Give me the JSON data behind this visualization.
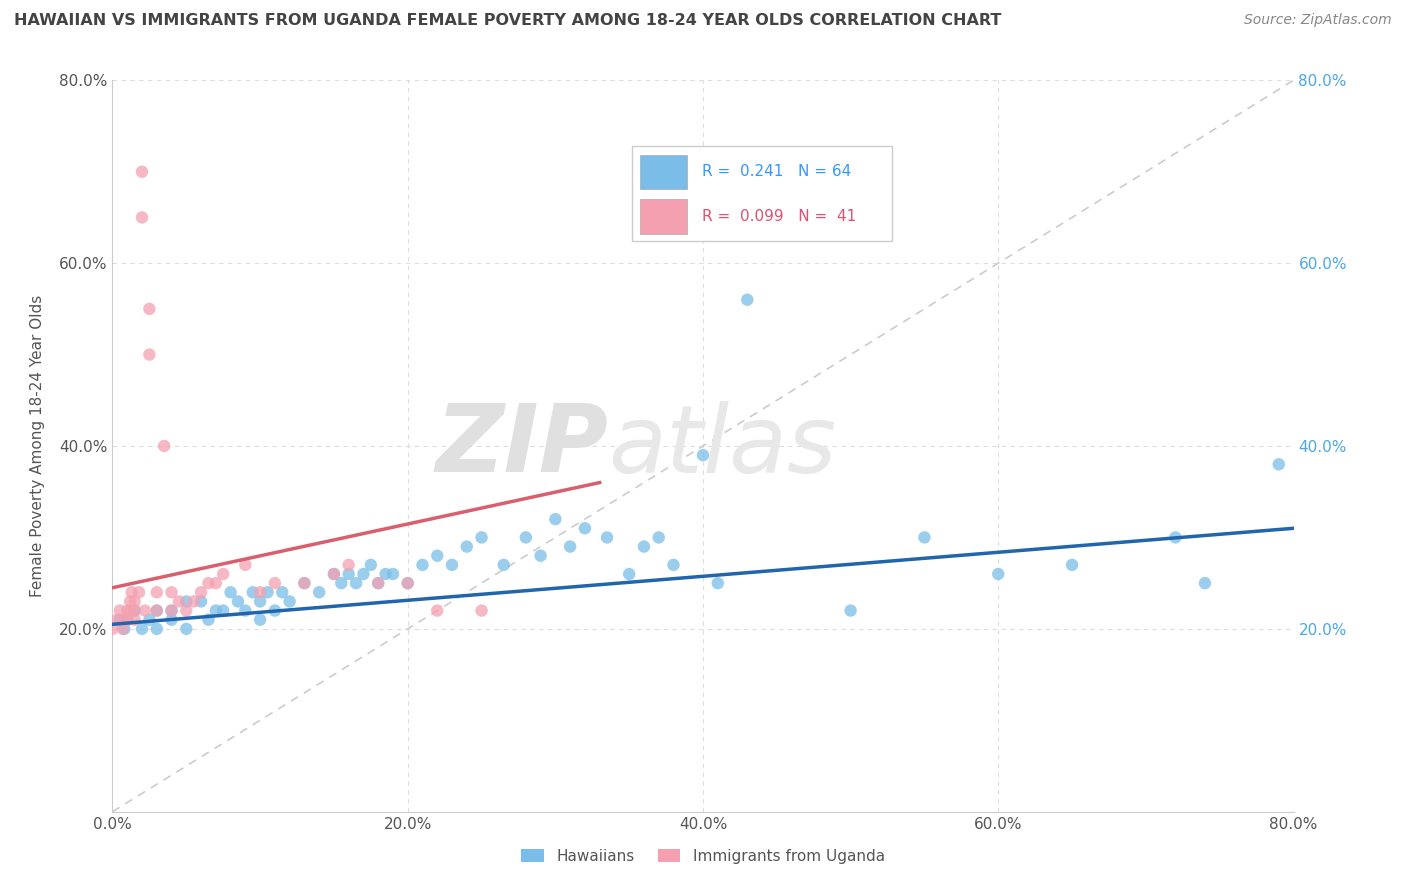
{
  "title": "HAWAIIAN VS IMMIGRANTS FROM UGANDA FEMALE POVERTY AMONG 18-24 YEAR OLDS CORRELATION CHART",
  "source": "Source: ZipAtlas.com",
  "ylabel": "Female Poverty Among 18-24 Year Olds",
  "xlim": [
    0,
    0.8
  ],
  "ylim": [
    0,
    0.8
  ],
  "xticks": [
    0.0,
    0.2,
    0.4,
    0.6,
    0.8
  ],
  "yticks": [
    0.0,
    0.2,
    0.4,
    0.6,
    0.8
  ],
  "xticklabels": [
    "0.0%",
    "20.0%",
    "40.0%",
    "60.0%",
    "80.0%"
  ],
  "right_yticklabels": [
    "20.0%",
    "40.0%",
    "60.0%",
    "80.0%"
  ],
  "right_yticks": [
    0.2,
    0.4,
    0.6,
    0.8
  ],
  "hawaiian_color": "#7abde8",
  "uganda_color": "#f4a0b0",
  "hawaii_line_color": "#2166ac",
  "uganda_line_color": "#d95f6e",
  "diagonal_color": "#cccccc",
  "watermark_zip": "ZIP",
  "watermark_atlas": "atlas",
  "legend_R_hawaiian": "0.241",
  "legend_N_hawaiian": "64",
  "legend_R_uganda": "0.099",
  "legend_N_uganda": "41",
  "hawaiian_x": [
    0.005,
    0.008,
    0.01,
    0.015,
    0.02,
    0.025,
    0.03,
    0.03,
    0.04,
    0.04,
    0.05,
    0.05,
    0.06,
    0.065,
    0.07,
    0.075,
    0.08,
    0.085,
    0.09,
    0.095,
    0.1,
    0.1,
    0.105,
    0.11,
    0.115,
    0.12,
    0.13,
    0.14,
    0.15,
    0.155,
    0.16,
    0.165,
    0.17,
    0.175,
    0.18,
    0.185,
    0.19,
    0.2,
    0.21,
    0.22,
    0.23,
    0.24,
    0.25,
    0.265,
    0.28,
    0.29,
    0.3,
    0.31,
    0.32,
    0.335,
    0.35,
    0.36,
    0.37,
    0.38,
    0.4,
    0.41,
    0.43,
    0.5,
    0.55,
    0.6,
    0.65,
    0.72,
    0.74,
    0.79
  ],
  "hawaiian_y": [
    0.21,
    0.2,
    0.21,
    0.22,
    0.2,
    0.21,
    0.22,
    0.2,
    0.22,
    0.21,
    0.23,
    0.2,
    0.23,
    0.21,
    0.22,
    0.22,
    0.24,
    0.23,
    0.22,
    0.24,
    0.23,
    0.21,
    0.24,
    0.22,
    0.24,
    0.23,
    0.25,
    0.24,
    0.26,
    0.25,
    0.26,
    0.25,
    0.26,
    0.27,
    0.25,
    0.26,
    0.26,
    0.25,
    0.27,
    0.28,
    0.27,
    0.29,
    0.3,
    0.27,
    0.3,
    0.28,
    0.32,
    0.29,
    0.31,
    0.3,
    0.26,
    0.29,
    0.3,
    0.27,
    0.39,
    0.25,
    0.56,
    0.22,
    0.3,
    0.26,
    0.27,
    0.3,
    0.25,
    0.38
  ],
  "uganda_x": [
    0.0,
    0.003,
    0.005,
    0.007,
    0.008,
    0.01,
    0.01,
    0.012,
    0.012,
    0.013,
    0.015,
    0.015,
    0.015,
    0.018,
    0.02,
    0.02,
    0.022,
    0.025,
    0.025,
    0.03,
    0.03,
    0.035,
    0.04,
    0.04,
    0.045,
    0.05,
    0.055,
    0.06,
    0.065,
    0.07,
    0.075,
    0.09,
    0.1,
    0.11,
    0.13,
    0.15,
    0.16,
    0.18,
    0.2,
    0.22,
    0.25
  ],
  "uganda_y": [
    0.2,
    0.21,
    0.22,
    0.2,
    0.21,
    0.22,
    0.21,
    0.23,
    0.22,
    0.24,
    0.23,
    0.22,
    0.21,
    0.24,
    0.7,
    0.65,
    0.22,
    0.5,
    0.55,
    0.22,
    0.24,
    0.4,
    0.22,
    0.24,
    0.23,
    0.22,
    0.23,
    0.24,
    0.25,
    0.25,
    0.26,
    0.27,
    0.24,
    0.25,
    0.25,
    0.26,
    0.27,
    0.25,
    0.25,
    0.22,
    0.22
  ],
  "uganda_trend_x": [
    0.0,
    0.33
  ],
  "uganda_trend_y": [
    0.245,
    0.36
  ],
  "hawaii_trend_x": [
    0.0,
    0.8
  ],
  "hawaii_trend_y": [
    0.205,
    0.31
  ]
}
